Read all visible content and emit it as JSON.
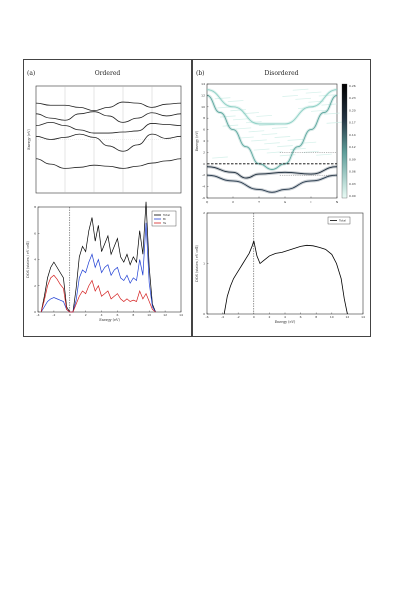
{
  "figure": {
    "panel_a": {
      "label": "(a)",
      "title": "Ordered"
    },
    "panel_b": {
      "label": "(b)",
      "title": "Disordered"
    }
  },
  "chart_data": [
    {
      "id": "ordered-bands",
      "type": "line",
      "ylabel": "Energy (eV)",
      "xlabel": "",
      "ylim": [
        -2,
        8
      ],
      "xlim": [
        0,
        5
      ],
      "hsym_x": [
        1,
        2,
        3,
        4
      ],
      "series": [
        {
          "x": [
            0,
            0.5,
            1,
            1.5,
            2,
            2.5,
            3,
            3.5,
            4,
            4.5,
            5
          ],
          "values": [
            1.2,
            0.7,
            0.3,
            0.4,
            0.6,
            0.5,
            0.3,
            0.5,
            0.8,
            1.0,
            1.2
          ]
        },
        {
          "x": [
            0,
            0.5,
            1,
            1.5,
            2,
            2.5,
            3,
            3.5,
            4,
            4.5,
            5
          ],
          "values": [
            3.3,
            3.0,
            3.2,
            3.5,
            3.2,
            2.4,
            1.9,
            2.5,
            3.5,
            3.1,
            3.3
          ]
        },
        {
          "x": [
            0,
            0.5,
            1,
            1.5,
            2,
            2.5,
            3,
            3.5,
            4,
            4.5,
            5
          ],
          "values": [
            4.3,
            4.6,
            4.3,
            3.9,
            3.6,
            3.6,
            3.7,
            3.8,
            4.5,
            4.4,
            4.3
          ]
        },
        {
          "x": [
            0,
            0.5,
            1,
            1.5,
            2,
            2.5,
            3,
            3.5,
            4,
            4.5,
            5
          ],
          "values": [
            5.4,
            5.0,
            4.8,
            5.4,
            5.6,
            5.2,
            4.6,
            5.0,
            5.5,
            5.2,
            5.4
          ]
        },
        {
          "x": [
            0,
            0.5,
            1,
            1.5,
            2,
            2.5,
            3,
            3.5,
            4,
            4.5,
            5
          ],
          "values": [
            6.4,
            6.2,
            6.2,
            6.0,
            5.7,
            6.0,
            6.5,
            6.4,
            6.0,
            6.3,
            6.4
          ]
        }
      ]
    },
    {
      "id": "ordered-dos",
      "type": "line",
      "xlabel": "Energy (eV)",
      "ylabel": "DOS (states / eV cell)",
      "xlim": [
        -4,
        14
      ],
      "ylim": [
        0,
        8
      ],
      "xticks": [
        -4,
        -2,
        0,
        2,
        4,
        6,
        8,
        10,
        12,
        14
      ],
      "yticks": [
        0,
        2,
        4,
        6,
        8
      ],
      "fermi_x": 0,
      "legend_position": "top-right",
      "series": [
        {
          "name": "Total",
          "color": "#000000",
          "x": [
            -3.6,
            -3.2,
            -2.8,
            -2.4,
            -2.0,
            -1.6,
            -1.2,
            -0.8,
            -0.4,
            0.0,
            0.4,
            0.8,
            1.2,
            1.6,
            2.0,
            2.4,
            2.8,
            3.2,
            3.6,
            4.0,
            4.4,
            4.8,
            5.2,
            5.6,
            6.0,
            6.4,
            6.8,
            7.2,
            7.6,
            8.0,
            8.4,
            8.8,
            9.2,
            9.6,
            10.0,
            10.4,
            10.8
          ],
          "values": [
            0.0,
            1.2,
            2.6,
            3.4,
            3.8,
            3.4,
            3.0,
            2.6,
            0.4,
            0.0,
            0.0,
            1.8,
            4.2,
            5.0,
            4.6,
            6.2,
            7.2,
            5.4,
            6.6,
            4.6,
            5.2,
            5.8,
            4.4,
            5.0,
            5.6,
            4.2,
            3.8,
            4.4,
            3.6,
            4.2,
            3.8,
            6.2,
            4.4,
            8.4,
            3.4,
            0.6,
            0.0
          ]
        },
        {
          "name": "Bi",
          "color": "#1f3fd4",
          "x": [
            -3.6,
            -3.2,
            -2.8,
            -2.4,
            -2.0,
            -1.6,
            -1.2,
            -0.8,
            -0.4,
            0.0,
            0.4,
            0.8,
            1.2,
            1.6,
            2.0,
            2.4,
            2.8,
            3.2,
            3.6,
            4.0,
            4.4,
            4.8,
            5.2,
            5.6,
            6.0,
            6.4,
            6.8,
            7.2,
            7.6,
            8.0,
            8.4,
            8.8,
            9.2,
            9.6,
            10.0,
            10.4,
            10.8
          ],
          "values": [
            0.0,
            0.4,
            0.8,
            1.0,
            1.1,
            1.0,
            0.9,
            0.8,
            0.2,
            0.0,
            0.0,
            0.9,
            2.6,
            3.2,
            3.0,
            3.8,
            4.4,
            3.4,
            4.0,
            3.0,
            3.4,
            3.6,
            2.8,
            3.2,
            3.4,
            2.6,
            2.4,
            2.8,
            2.2,
            2.6,
            2.4,
            4.0,
            2.8,
            6.8,
            2.2,
            0.4,
            0.0
          ]
        },
        {
          "name": "Te",
          "color": "#d42020",
          "x": [
            -3.6,
            -3.2,
            -2.8,
            -2.4,
            -2.0,
            -1.6,
            -1.2,
            -0.8,
            -0.4,
            0.0,
            0.4,
            0.8,
            1.2,
            1.6,
            2.0,
            2.4,
            2.8,
            3.2,
            3.6,
            4.0,
            4.4,
            4.8,
            5.2,
            5.6,
            6.0,
            6.4,
            6.8,
            7.2,
            7.6,
            8.0,
            8.4,
            8.8,
            9.2,
            9.6,
            10.0,
            10.4,
            10.8
          ],
          "values": [
            0.0,
            0.9,
            2.0,
            2.6,
            2.8,
            2.5,
            2.1,
            1.8,
            0.2,
            0.0,
            0.0,
            0.6,
            1.2,
            1.6,
            1.4,
            2.0,
            2.4,
            1.6,
            2.0,
            1.2,
            1.4,
            1.6,
            1.0,
            1.2,
            1.4,
            1.0,
            0.8,
            1.0,
            0.8,
            0.9,
            0.8,
            1.6,
            1.0,
            1.4,
            0.8,
            0.2,
            0.0
          ]
        }
      ]
    },
    {
      "id": "disordered-bands",
      "type": "heatmap",
      "ylabel": "Energy (eV)",
      "ylim": [
        -6,
        14
      ],
      "yticks": [
        -6,
        -4,
        -2,
        0,
        2,
        4,
        6,
        8,
        10,
        12,
        14
      ],
      "x_labels": [
        "Q",
        "X",
        "T",
        "G",
        "I",
        "N"
      ],
      "colorbar_ticks": [
        "0.26",
        "0.23",
        "0.20",
        "0.17",
        "0.14",
        "0.12",
        "0.09",
        "0.06",
        "0.03",
        "0.00"
      ],
      "colorbar_range": [
        0,
        0.26
      ]
    },
    {
      "id": "disordered-dos",
      "type": "line",
      "xlabel": "Energy (eV)",
      "ylabel": "DOS (states / eV cell)",
      "xlim": [
        -6,
        14
      ],
      "ylim": [
        0,
        2
      ],
      "xticks": [
        -6,
        -4,
        -2,
        0,
        2,
        4,
        6,
        8,
        10,
        12,
        14
      ],
      "yticks": [
        0,
        1,
        2
      ],
      "fermi_x": 0,
      "legend_position": "top-right",
      "series": [
        {
          "name": "Total",
          "color": "#000000",
          "x": [
            -3.8,
            -3.4,
            -3.0,
            -2.6,
            -2.2,
            -1.8,
            -1.4,
            -1.0,
            -0.6,
            -0.2,
            0.0,
            0.4,
            0.8,
            1.2,
            1.6,
            2.0,
            2.8,
            3.6,
            4.4,
            5.2,
            6.0,
            6.8,
            7.6,
            8.4,
            9.2,
            10.0,
            10.6,
            11.2,
            11.6,
            12.0
          ],
          "values": [
            0.0,
            0.35,
            0.55,
            0.7,
            0.8,
            0.9,
            1.0,
            1.1,
            1.2,
            1.35,
            1.45,
            1.15,
            1.0,
            1.05,
            1.1,
            1.15,
            1.2,
            1.22,
            1.26,
            1.3,
            1.34,
            1.36,
            1.35,
            1.32,
            1.28,
            1.18,
            1.0,
            0.7,
            0.3,
            0.0
          ]
        }
      ]
    }
  ]
}
